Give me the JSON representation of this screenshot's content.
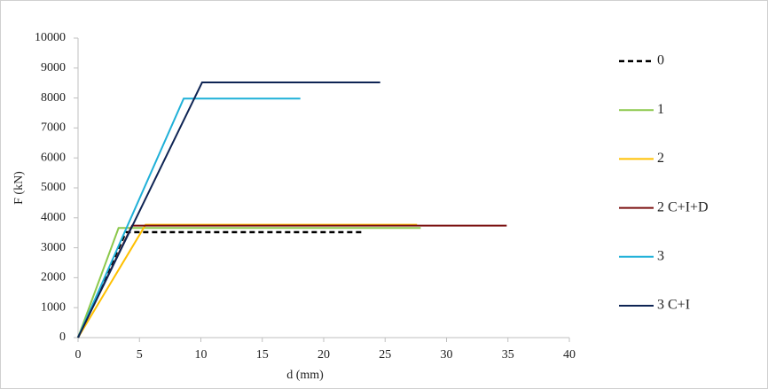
{
  "chart_data": {
    "type": "line",
    "x_label": "d (mm)",
    "y_label": "F (kN)",
    "xlim": [
      0,
      40
    ],
    "xticks": [
      0,
      5,
      10,
      15,
      20,
      25,
      30,
      35,
      40
    ],
    "ylim": [
      0,
      10000
    ],
    "yticks": [
      0,
      1000,
      2000,
      3000,
      4000,
      5000,
      6000,
      7000,
      8000,
      9000,
      10000
    ],
    "grid": false,
    "legend": "right",
    "series": [
      {
        "name": "0",
        "color": "#000000",
        "dashed": true,
        "x": [
          0,
          3.9,
          23.3
        ],
        "values": [
          0,
          3520,
          3520
        ]
      },
      {
        "name": "1",
        "color": "#8cc84b",
        "x": [
          0,
          3.3,
          27.9
        ],
        "values": [
          0,
          3660,
          3660
        ]
      },
      {
        "name": "2",
        "color": "#ffc000",
        "x": [
          0,
          5.5,
          27.6
        ],
        "values": [
          0,
          3770,
          3770
        ]
      },
      {
        "name": "2 C+I+D",
        "color": "#7b1010",
        "x": [
          0,
          4.4,
          34.9
        ],
        "values": [
          0,
          3740,
          3740
        ]
      },
      {
        "name": "3",
        "color": "#1fb0d8",
        "x": [
          0,
          8.6,
          18.1
        ],
        "values": [
          0,
          7980,
          7980
        ]
      },
      {
        "name": "3 C+I",
        "color": "#0e2454",
        "x": [
          0,
          10.1,
          24.6
        ],
        "values": [
          0,
          8520,
          8520
        ]
      }
    ]
  }
}
